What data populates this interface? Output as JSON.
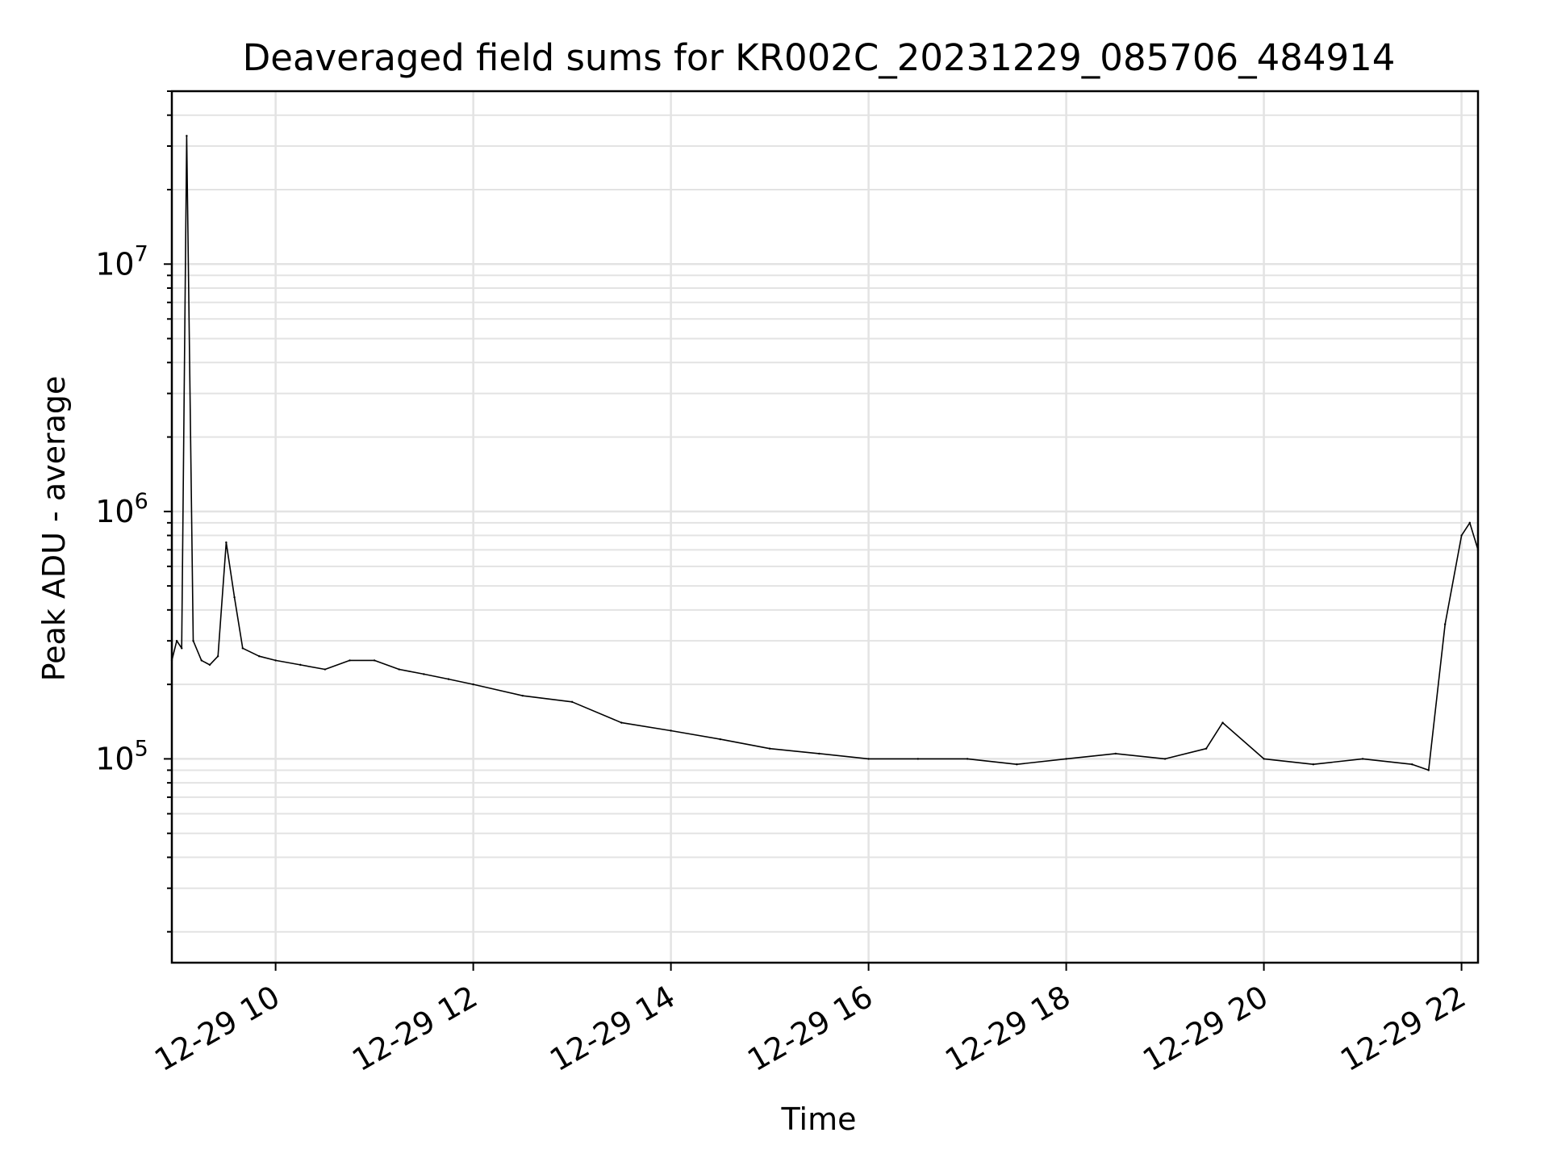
{
  "chart_data": {
    "type": "line",
    "title": "Deaveraged field sums for KR002C_20231229_085706_484914",
    "xlabel": "Time",
    "ylabel": "Peak ADU - average",
    "yscale": "log",
    "grid": true,
    "legend": "none",
    "line_color": "#000000",
    "xlim": [
      "2023-12-29 08:57",
      "2023-12-29 22:10"
    ],
    "ylim": [
      15000,
      50000000
    ],
    "x_ticks": [
      {
        "value": "2023-12-29 10:00",
        "label": "12-29 10"
      },
      {
        "value": "2023-12-29 12:00",
        "label": "12-29 12"
      },
      {
        "value": "2023-12-29 14:00",
        "label": "12-29 14"
      },
      {
        "value": "2023-12-29 16:00",
        "label": "12-29 16"
      },
      {
        "value": "2023-12-29 18:00",
        "label": "12-29 18"
      },
      {
        "value": "2023-12-29 20:00",
        "label": "12-29 20"
      },
      {
        "value": "2023-12-29 22:00",
        "label": "12-29 22"
      }
    ],
    "y_ticks": [
      {
        "value": 100000,
        "base": "10",
        "exp": "5"
      },
      {
        "value": 1000000,
        "base": "10",
        "exp": "6"
      },
      {
        "value": 10000000,
        "base": "10",
        "exp": "7"
      }
    ],
    "series": [
      {
        "x": [
          "2023-12-29 08:57",
          "2023-12-29 09:00",
          "2023-12-29 09:03",
          "2023-12-29 09:06",
          "2023-12-29 09:10",
          "2023-12-29 09:15",
          "2023-12-29 09:20",
          "2023-12-29 09:25",
          "2023-12-29 09:30",
          "2023-12-29 09:35",
          "2023-12-29 09:40",
          "2023-12-29 09:50",
          "2023-12-29 10:00",
          "2023-12-29 10:15",
          "2023-12-29 10:30",
          "2023-12-29 10:45",
          "2023-12-29 11:00",
          "2023-12-29 11:15",
          "2023-12-29 11:30",
          "2023-12-29 11:45",
          "2023-12-29 12:00",
          "2023-12-29 12:30",
          "2023-12-29 13:00",
          "2023-12-29 13:30",
          "2023-12-29 14:00",
          "2023-12-29 14:30",
          "2023-12-29 15:00",
          "2023-12-29 15:30",
          "2023-12-29 16:00",
          "2023-12-29 16:30",
          "2023-12-29 17:00",
          "2023-12-29 17:30",
          "2023-12-29 18:00",
          "2023-12-29 18:30",
          "2023-12-29 19:00",
          "2023-12-29 19:25",
          "2023-12-29 19:35",
          "2023-12-29 20:00",
          "2023-12-29 20:30",
          "2023-12-29 21:00",
          "2023-12-29 21:30",
          "2023-12-29 21:40",
          "2023-12-29 21:50",
          "2023-12-29 22:00",
          "2023-12-29 22:05",
          "2023-12-29 22:10"
        ],
        "y": [
          250000,
          300000,
          280000,
          33000000,
          300000,
          250000,
          240000,
          260000,
          750000,
          450000,
          280000,
          260000,
          250000,
          240000,
          230000,
          250000,
          250000,
          230000,
          220000,
          210000,
          200000,
          180000,
          170000,
          140000,
          130000,
          120000,
          110000,
          105000,
          100000,
          100000,
          100000,
          95000,
          100000,
          105000,
          100000,
          110000,
          140000,
          100000,
          95000,
          100000,
          95000,
          90000,
          350000,
          800000,
          900000,
          700000
        ]
      }
    ]
  }
}
